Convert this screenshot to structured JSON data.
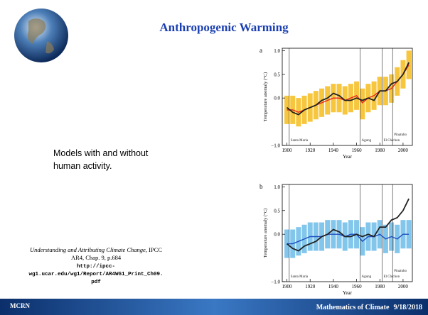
{
  "slide": {
    "title": "Anthropogenic Warming",
    "body": [
      "Models with and without",
      "human activity."
    ],
    "citation": {
      "title": "Understanding and Attributing Climate Change",
      "source": ", IPCC",
      "detail": "AR4, Chap. 9, p.684",
      "url": [
        "http://ipcc-",
        "wg1.ucar.edu/wg1/Report/AR4WG1_Print_Ch09.",
        "pdf"
      ]
    },
    "logo": "MCRN",
    "footer": {
      "course": "Mathematics of Climate",
      "date": "9/18/2018"
    }
  },
  "chart_data": [
    {
      "type": "line",
      "panel": "a",
      "ylabel": "Temperature anomaly (°C)",
      "xlabel": "Year",
      "xlim": [
        1896,
        2008
      ],
      "ylim": [
        -1.0,
        1.05
      ],
      "xticks": [
        1900,
        1920,
        1940,
        1960,
        1980,
        2000
      ],
      "yticks": [
        {
          "value": -1.0,
          "label": "−1.0"
        },
        {
          "value": 0,
          "label": "0.0"
        },
        {
          "value": 0.5,
          "label": "0.5"
        },
        {
          "value": 1.0,
          "label": "1.0"
        }
      ],
      "x": [
        1900,
        1905,
        1910,
        1915,
        1920,
        1925,
        1930,
        1935,
        1940,
        1945,
        1950,
        1955,
        1960,
        1965,
        1970,
        1975,
        1980,
        1985,
        1990,
        1995,
        2000,
        2005
      ],
      "band": {
        "color": "#f5b400",
        "lower": [
          -0.55,
          -0.55,
          -0.6,
          -0.55,
          -0.5,
          -0.45,
          -0.4,
          -0.35,
          -0.3,
          -0.3,
          -0.35,
          -0.3,
          -0.25,
          -0.45,
          -0.3,
          -0.25,
          -0.15,
          -0.15,
          -0.1,
          0.05,
          0.2,
          0.4
        ],
        "upper": [
          0.05,
          0.05,
          0.0,
          0.05,
          0.1,
          0.15,
          0.2,
          0.25,
          0.3,
          0.3,
          0.25,
          0.3,
          0.35,
          0.2,
          0.3,
          0.35,
          0.45,
          0.45,
          0.5,
          0.65,
          0.8,
          1.0
        ]
      },
      "series": [
        {
          "color": "#e8261c",
          "values": [
            -0.25,
            -0.25,
            -0.3,
            -0.25,
            -0.2,
            -0.15,
            -0.1,
            -0.05,
            0.0,
            0.0,
            -0.05,
            0.0,
            0.05,
            -0.1,
            0.0,
            0.05,
            0.15,
            0.15,
            0.2,
            0.35,
            0.5,
            0.7
          ]
        },
        {
          "color": "#222222",
          "values": [
            -0.2,
            -0.3,
            -0.35,
            -0.25,
            -0.2,
            -0.15,
            -0.05,
            0.0,
            0.1,
            0.05,
            -0.05,
            -0.05,
            0.0,
            -0.05,
            0.0,
            -0.05,
            0.15,
            0.15,
            0.3,
            0.35,
            0.5,
            0.75
          ]
        }
      ],
      "annotations": [
        {
          "x": 1902,
          "text": "Santa Maria"
        },
        {
          "x": 1963,
          "text": "Agung"
        },
        {
          "x": 1982,
          "text": "El Chichon"
        },
        {
          "x": 1991,
          "text": "Pinatubo"
        }
      ]
    },
    {
      "type": "line",
      "panel": "b",
      "ylabel": "Temperature anomaly (°C)",
      "xlabel": "Year",
      "xlim": [
        1896,
        2008
      ],
      "ylim": [
        -1.0,
        1.05
      ],
      "xticks": [
        1900,
        1920,
        1940,
        1960,
        1980,
        2000
      ],
      "yticks": [
        {
          "value": -1.0,
          "label": "−1.0"
        },
        {
          "value": 0,
          "label": "0.0"
        },
        {
          "value": 0.5,
          "label": "0.5"
        },
        {
          "value": 1.0,
          "label": "1.0"
        }
      ],
      "x": [
        1900,
        1905,
        1910,
        1915,
        1920,
        1925,
        1930,
        1935,
        1940,
        1945,
        1950,
        1955,
        1960,
        1965,
        1970,
        1975,
        1980,
        1985,
        1990,
        1995,
        2000,
        2005
      ],
      "band": {
        "color": "#5ab4e6",
        "lower": [
          -0.5,
          -0.5,
          -0.45,
          -0.4,
          -0.35,
          -0.35,
          -0.35,
          -0.3,
          -0.3,
          -0.3,
          -0.35,
          -0.3,
          -0.3,
          -0.45,
          -0.35,
          -0.35,
          -0.3,
          -0.4,
          -0.35,
          -0.4,
          -0.3,
          -0.3
        ],
        "upper": [
          0.1,
          0.1,
          0.15,
          0.2,
          0.25,
          0.25,
          0.25,
          0.3,
          0.3,
          0.3,
          0.25,
          0.3,
          0.3,
          0.15,
          0.25,
          0.25,
          0.3,
          0.2,
          0.25,
          0.2,
          0.3,
          0.3
        ]
      },
      "series": [
        {
          "color": "#1f4fbf",
          "values": [
            -0.2,
            -0.2,
            -0.15,
            -0.1,
            -0.05,
            -0.05,
            -0.05,
            0.0,
            0.0,
            0.0,
            -0.05,
            0.0,
            0.0,
            -0.15,
            -0.05,
            -0.05,
            0.0,
            -0.1,
            -0.05,
            -0.1,
            0.0,
            0.0
          ]
        },
        {
          "color": "#222222",
          "values": [
            -0.2,
            -0.3,
            -0.35,
            -0.25,
            -0.2,
            -0.15,
            -0.05,
            0.0,
            0.1,
            0.05,
            -0.05,
            -0.05,
            0.0,
            -0.05,
            0.0,
            -0.05,
            0.15,
            0.15,
            0.3,
            0.35,
            0.5,
            0.75
          ]
        }
      ],
      "annotations": [
        {
          "x": 1902,
          "text": "Santa Maria"
        },
        {
          "x": 1963,
          "text": "Agung"
        },
        {
          "x": 1982,
          "text": "El Chichon"
        },
        {
          "x": 1991,
          "text": "Pinatubo"
        }
      ]
    }
  ]
}
